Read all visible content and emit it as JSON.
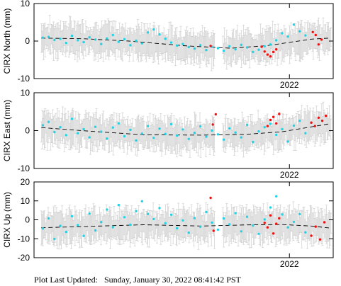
{
  "chart_data": [
    {
      "type": "scatter",
      "ylabel": "CIRX North (mm)",
      "ylim": [
        -10,
        10
      ],
      "yticks": [
        -10,
        0,
        10
      ],
      "xlabel_tick": "2022",
      "xlim": [
        2018.5,
        2022.6
      ],
      "trend": {
        "x": [
          2018.6,
          2019.2,
          2019.8,
          2020.6,
          2021.2,
          2021.7,
          2022.3,
          2022.55
        ],
        "y": [
          0.8,
          0.6,
          0.0,
          -1.3,
          -1.9,
          -1.2,
          0.5,
          0.8
        ]
      },
      "series": [
        {
          "color": "#22d3e6",
          "x": [
            2018.62,
            2018.7,
            2018.78,
            2018.86,
            2018.94,
            2019.02,
            2019.1,
            2019.18,
            2019.26,
            2019.34,
            2019.42,
            2019.5,
            2019.58,
            2019.66,
            2019.74,
            2019.82,
            2019.9,
            2019.98,
            2020.06,
            2020.14,
            2020.22,
            2020.3,
            2020.38,
            2020.46,
            2020.54,
            2020.62,
            2020.7,
            2020.78,
            2020.86,
            2020.94,
            2021.02,
            2021.1,
            2021.18,
            2021.26,
            2021.34,
            2021.42,
            2021.5,
            2021.58,
            2021.66,
            2021.74,
            2021.82,
            2021.9,
            2021.98,
            2022.06,
            2022.14,
            2022.22
          ],
          "y": [
            0.9,
            1.1,
            0.3,
            0.6,
            -0.5,
            1.4,
            0.2,
            -0.3,
            1.0,
            0.4,
            -0.8,
            0.7,
            1.6,
            -0.2,
            0.5,
            -1.1,
            0.1,
            -0.6,
            2.3,
            3.1,
            1.8,
            0.6,
            -0.4,
            -1.2,
            -0.8,
            -1.6,
            -2.0,
            -1.1,
            -2.4,
            -1.5,
            -1.9,
            -2.6,
            -1.4,
            -2.2,
            -1.0,
            -1.7,
            -2.9,
            -2.3,
            -1.4,
            -0.9,
            0.2,
            2.1,
            1.2,
            4.4,
            2.6,
            1.5
          ]
        },
        {
          "color": "#ee1111",
          "x": [
            2020.92,
            2021.62,
            2021.66,
            2021.7,
            2021.74,
            2021.78,
            2021.82,
            2022.32,
            2022.36,
            2022.4,
            2022.44
          ],
          "y": [
            -1.3,
            -1.5,
            -2.8,
            -3.6,
            -4.1,
            -2.9,
            -2.2,
            2.4,
            1.6,
            -0.9,
            0.4
          ]
        }
      ]
    },
    {
      "type": "scatter",
      "ylabel": "CIRX East (mm)",
      "ylim": [
        -10,
        10
      ],
      "yticks": [
        -10,
        0,
        10
      ],
      "xlabel_tick": "2022",
      "xlim": [
        2018.5,
        2022.6
      ],
      "trend": {
        "x": [
          2018.6,
          2019.3,
          2020.0,
          2020.8,
          2021.4,
          2021.9,
          2022.3,
          2022.55
        ],
        "y": [
          0.8,
          -0.2,
          -1.1,
          -1.2,
          -1.0,
          -0.3,
          1.0,
          1.8
        ]
      },
      "series": [
        {
          "color": "#22d3e6",
          "x": [
            2018.62,
            2018.7,
            2018.78,
            2018.86,
            2018.94,
            2019.02,
            2019.1,
            2019.18,
            2019.26,
            2019.34,
            2019.42,
            2019.5,
            2019.58,
            2019.66,
            2019.74,
            2019.82,
            2019.9,
            2019.98,
            2020.06,
            2020.14,
            2020.22,
            2020.3,
            2020.38,
            2020.46,
            2020.54,
            2020.62,
            2020.7,
            2020.78,
            2020.86,
            2020.94,
            2021.02,
            2021.1,
            2021.18,
            2021.26,
            2021.34,
            2021.42,
            2021.5,
            2021.58,
            2021.66,
            2021.74,
            2021.82,
            2021.9,
            2021.98,
            2022.06,
            2022.14,
            2022.22
          ],
          "y": [
            1.4,
            2.3,
            -0.4,
            0.9,
            -1.2,
            3.1,
            -0.7,
            0.4,
            -1.8,
            1.0,
            -0.3,
            -2.1,
            0.8,
            1.9,
            -1.5,
            0.2,
            -2.6,
            -0.8,
            1.2,
            -1.9,
            0.5,
            -0.9,
            1.7,
            -1.3,
            0.3,
            -2.2,
            -0.6,
            1.1,
            -1.6,
            0.0,
            -1.0,
            -2.4,
            0.6,
            -0.5,
            -1.8,
            1.5,
            -3.0,
            -0.2,
            0.9,
            1.8,
            -1.1,
            0.4,
            -2.9,
            1.3,
            2.6,
            -0.7
          ]
        },
        {
          "color": "#ee1111",
          "x": [
            2020.95,
            2020.99,
            2021.7,
            2021.74,
            2021.78,
            2021.82,
            2021.86,
            2022.3,
            2022.35,
            2022.4,
            2022.45,
            2022.5
          ],
          "y": [
            1.6,
            4.3,
            1.2,
            2.8,
            3.6,
            1.9,
            4.4,
            2.1,
            1.2,
            3.4,
            2.6,
            3.9
          ]
        }
      ]
    },
    {
      "type": "scatter",
      "ylabel": "CIRX Up (mm)",
      "ylim": [
        -20,
        20
      ],
      "yticks": [
        -20,
        -10,
        0,
        10,
        20
      ],
      "xlabel_tick": "2022",
      "xlim": [
        2018.5,
        2022.6
      ],
      "trend": {
        "x": [
          2018.6,
          2019.3,
          2020.0,
          2020.8,
          2021.4,
          2021.9,
          2022.3,
          2022.55
        ],
        "y": [
          -4.2,
          -3.4,
          -2.6,
          -3.3,
          -2.7,
          -2.5,
          -3.3,
          -4.3
        ]
      },
      "series": [
        {
          "color": "#22d3e6",
          "x": [
            2018.62,
            2018.7,
            2018.78,
            2018.86,
            2018.94,
            2019.02,
            2019.1,
            2019.18,
            2019.26,
            2019.34,
            2019.42,
            2019.5,
            2019.58,
            2019.66,
            2019.74,
            2019.82,
            2019.9,
            2019.98,
            2020.06,
            2020.14,
            2020.22,
            2020.3,
            2020.38,
            2020.46,
            2020.54,
            2020.62,
            2020.7,
            2020.78,
            2020.86,
            2020.94,
            2021.02,
            2021.1,
            2021.18,
            2021.26,
            2021.34,
            2021.42,
            2021.5,
            2021.58,
            2021.66,
            2021.74,
            2021.82,
            2021.9,
            2021.98,
            2022.06,
            2022.14,
            2022.22
          ],
          "y": [
            -4.6,
            0.8,
            -10.1,
            -3.2,
            -6.4,
            1.9,
            -2.8,
            -8.5,
            3.3,
            -5.6,
            -1.2,
            5.4,
            -3.9,
            7.8,
            1.4,
            -2.6,
            4.6,
            9.8,
            3.1,
            0.4,
            6.2,
            -1.8,
            2.7,
            -4.5,
            -0.3,
            -6.8,
            0.9,
            -3.7,
            4.1,
            -1.5,
            -5.2,
            0.7,
            -2.4,
            3.5,
            -6.1,
            1.6,
            -3.0,
            -7.4,
            0.2,
            6.5,
            12.4,
            2.8,
            -4.0,
            -1.1,
            3.0,
            -6.6
          ]
        },
        {
          "color": "#ee1111",
          "x": [
            2020.92,
            2020.96,
            2021.66,
            2021.7,
            2021.74,
            2021.78,
            2021.82,
            2021.86,
            2022.3,
            2022.36,
            2022.42,
            2022.48
          ],
          "y": [
            11.6,
            -5.8,
            -1.6,
            -4.0,
            2.3,
            -7.2,
            -2.1,
            0.8,
            -8.4,
            -3.6,
            -10.4,
            -1.3
          ]
        }
      ]
    }
  ],
  "footer": {
    "label": "Plot Last Updated:",
    "timestamp": "Sunday, January 30, 2022 08:41:42 PST"
  }
}
